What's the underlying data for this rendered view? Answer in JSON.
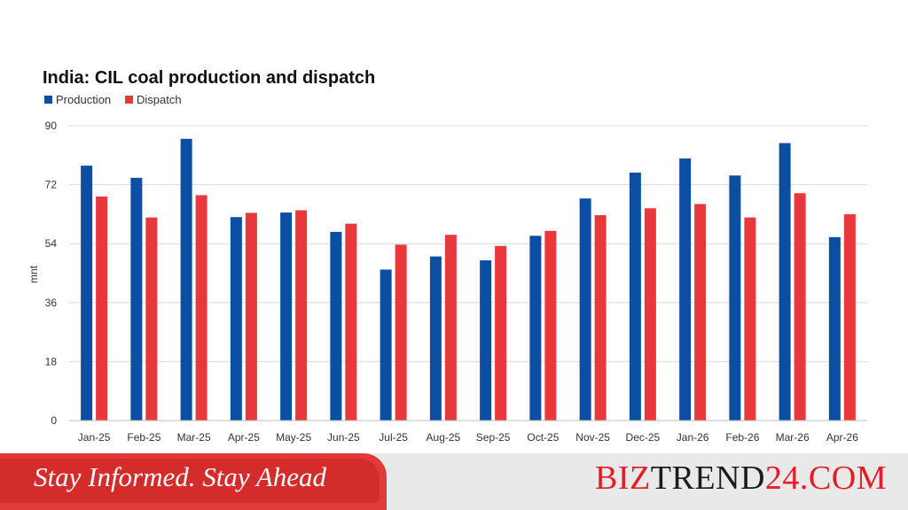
{
  "chart_data": {
    "type": "bar",
    "title": "India: CIL coal production and dispatch",
    "ylabel": "mnt",
    "xlabel": "",
    "ylim": [
      0,
      90
    ],
    "yticks": [
      0,
      18,
      36,
      54,
      72,
      90
    ],
    "grid": true,
    "legend_position": "top-left",
    "categories": [
      "Jan-25",
      "Feb-25",
      "Mar-25",
      "Apr-25",
      "May-25",
      "Jun-25",
      "Jul-25",
      "Aug-25",
      "Sep-25",
      "Oct-25",
      "Nov-25",
      "Dec-25",
      "Jan-26",
      "Feb-26",
      "Mar-26",
      "Apr-26"
    ],
    "series": [
      {
        "name": "Production",
        "color": "#0b4ea2",
        "values": [
          77.8,
          74.1,
          86.0,
          62.1,
          63.5,
          57.6,
          46.1,
          50.1,
          48.9,
          56.4,
          67.8,
          75.7,
          80.0,
          74.8,
          84.7,
          56.0
        ]
      },
      {
        "name": "Dispatch",
        "color": "#e8383b",
        "values": [
          68.4,
          62.0,
          68.8,
          63.4,
          64.2,
          60.1,
          53.7,
          56.7,
          53.3,
          57.9,
          62.7,
          64.8,
          66.1,
          62.0,
          69.4,
          63.0
        ]
      }
    ]
  },
  "footer": {
    "tagline": "Stay Informed. Stay Ahead",
    "brand_a": "BIZ",
    "brand_b": "TREND",
    "brand_c": "24.COM",
    "tagline_color": "#d42b2b",
    "brand_red": "#e01f26",
    "brand_dark": "#1c1c1c"
  }
}
